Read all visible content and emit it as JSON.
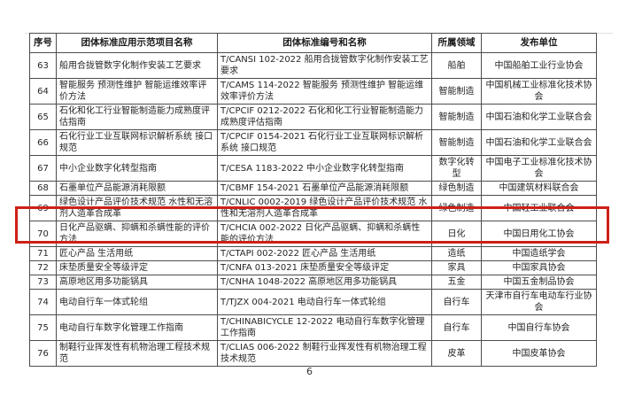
{
  "page": {
    "number": "6"
  },
  "highlight": {
    "row_no": "70",
    "color": "#cd2017"
  },
  "table": {
    "headers": [
      "序号",
      "团体标准应用示范项目名称",
      "团体标准编号和名称",
      "所属领域",
      "发布单位"
    ],
    "rows": [
      {
        "no": "63",
        "project": "船用合拢管数字化制作安装工艺要求",
        "standard": "T/CANSI 102-2022 船用合拢管数字化制作安装工艺要求",
        "field": "船舶",
        "publisher": "中国船舶工业行业协会"
      },
      {
        "no": "64",
        "project": "智能服务 预测性维护 智能运维效率评价方法",
        "standard": "T/CAMS 114-2022 智能服务 预测性维护 智能运维效率评价方法",
        "field": "智能制造",
        "publisher": "中国机械工业标准化技术协会"
      },
      {
        "no": "65",
        "project": "石化和化工行业智能制造能力成熟度评估指南",
        "standard": "T/CPCIF 0212-2022 石化和化工行业智能制造能力成熟度评估指南",
        "field": "智能制造",
        "publisher": "中国石油和化学工业联合会"
      },
      {
        "no": "66",
        "project": "石化行业工业互联网标识解析系统 接口规范",
        "standard": "T/CPCIF 0154-2021 石化行业工业互联网标识解析系统 接口规范",
        "field": "智能制造",
        "publisher": "中国石油和化学工业联合会"
      },
      {
        "no": "67",
        "project": "中小企业数字化转型指南",
        "standard": "T/CESA 1183-2022 中小企业数字化转型指南",
        "field": "数字化转型",
        "publisher": "中国电子工业标准化技术协会"
      },
      {
        "no": "68",
        "project": "石墨单位产品能源消耗限额",
        "standard": "T/CBMF 154-2021 石墨单位产品能源消耗限额",
        "field": "绿色制造",
        "publisher": "中国建筑材料联合会"
      },
      {
        "no": "69",
        "project": "绿色设计产品评价技术规范 水性和无溶剂人造革合成革",
        "standard": "T/CNLIC 0002-2019 绿色设计产品评价技术规范 水性和无溶剂人造革合成革",
        "field": "绿色制造",
        "publisher": "中国轻工业联合会"
      },
      {
        "no": "70",
        "project": "日化产品驱螨、抑螨和杀螨性能的评价方法",
        "standard": "T/CHCIA 002-2022 日化产品驱螨、抑螨和杀螨性能的评价方法",
        "field": "日化",
        "publisher": "中国日用化工协会"
      },
      {
        "no": "71",
        "project": "匠心产品 生活用纸",
        "standard": "T/CTAPI 002-2022 匠心产品 生活用纸",
        "field": "造纸",
        "publisher": "中国造纸学会"
      },
      {
        "no": "72",
        "project": "床垫质量安全等级评定",
        "standard": "T/CNFA 013-2021 床垫质量安全等级评定",
        "field": "家具",
        "publisher": "中国家具协会"
      },
      {
        "no": "73",
        "project": "高原地区用多功能锅具",
        "standard": "T/CNHA 1048-2022 高原地区用多功能锅具",
        "field": "五金",
        "publisher": "中国五金制品协会"
      },
      {
        "no": "74",
        "project": "电动自行车一体式轮组",
        "standard": "T/TJZX 004-2021 电动自行车一体式轮组",
        "field": "自行车",
        "publisher": "天津市自行车电动车行业协会"
      },
      {
        "no": "75",
        "project": "电动自行车数字化管理工作指南",
        "standard": "T/CHINABICYCLE 12-2022 电动自行车数字化管理工作指南",
        "field": "自行车",
        "publisher": "中国自行车协会"
      },
      {
        "no": "76",
        "project": "制鞋行业挥发性有机物治理工程技术规范",
        "standard": "T/CLIAS 006-2022 制鞋行业挥发性有机物治理工程技术规范",
        "field": "皮革",
        "publisher": "中国皮革协会"
      }
    ]
  }
}
